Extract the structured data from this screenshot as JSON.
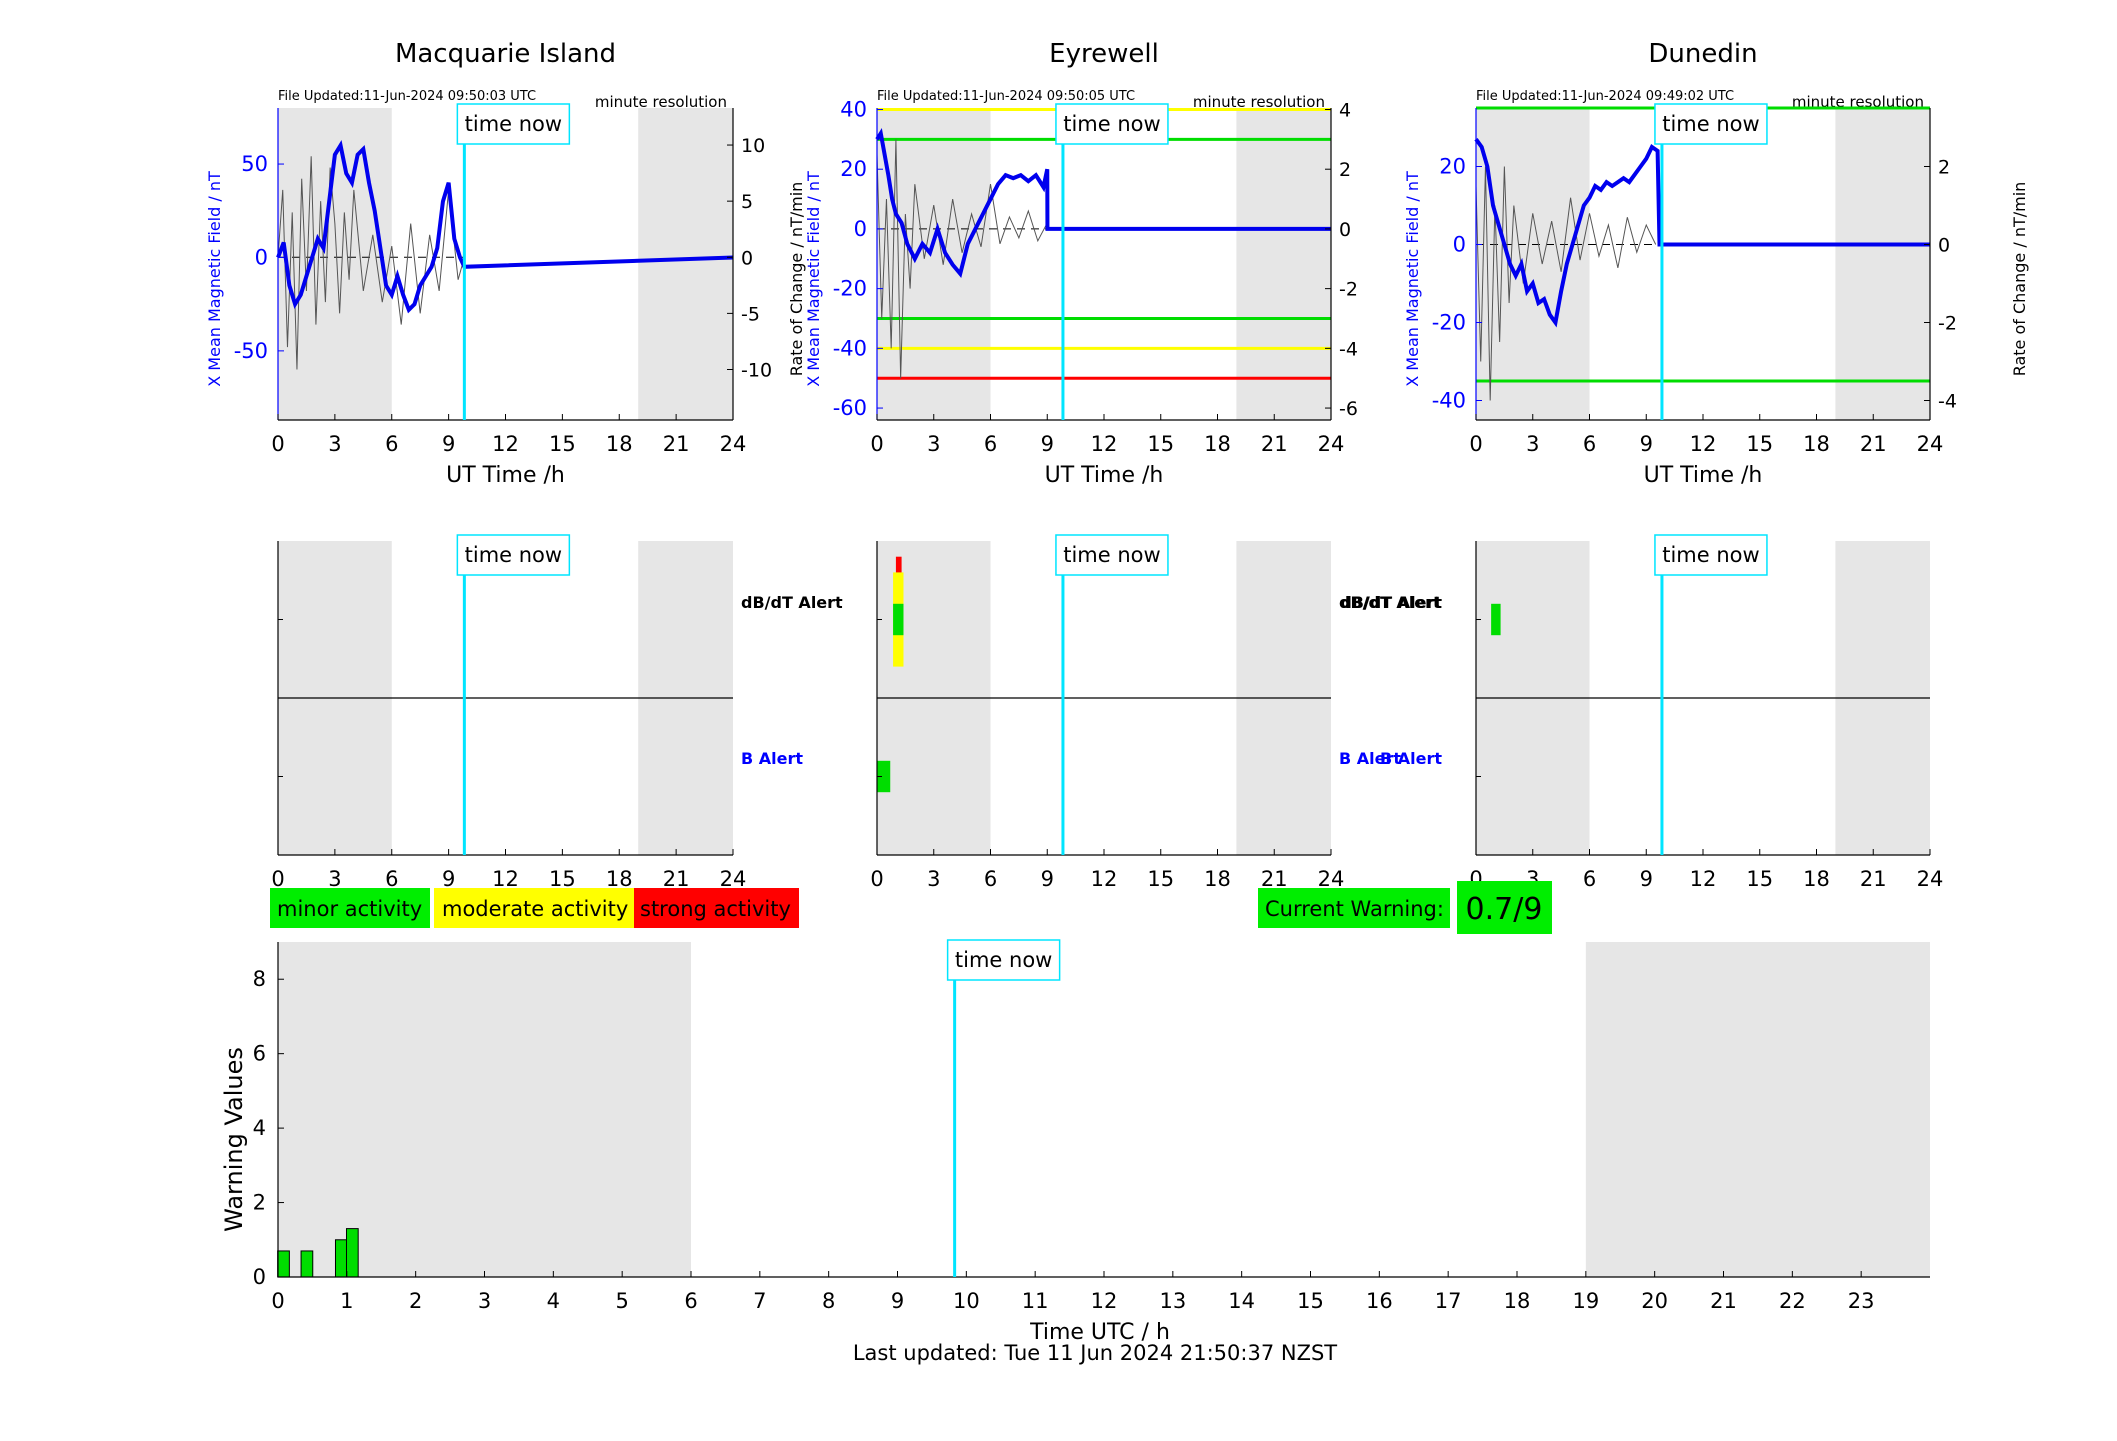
{
  "chart_data": [
    {
      "type": "line",
      "title": "Macquarie Island",
      "file_updated": "File Updated:11-Jun-2024 09:50:03 UTC",
      "resolution": "minute resolution",
      "xlabel": "UT Time /h",
      "ylabel": "X Mean Magnetic Field / nT",
      "ylabel_right": "",
      "xlim": [
        0,
        24
      ],
      "ylim": [
        -87,
        80
      ],
      "ylim_right": [
        -14.5,
        13.3
      ],
      "xticks": [
        0,
        3,
        6,
        9,
        12,
        15,
        18,
        21,
        24
      ],
      "yticks": [
        -50,
        0,
        50
      ],
      "yticks_right": [
        -10,
        -5,
        0,
        5,
        10
      ],
      "night_shading": [
        [
          0,
          6
        ],
        [
          19,
          24
        ]
      ],
      "time_now": 9.83,
      "time_now_label": "time now",
      "thresholds": [],
      "series": [
        {
          "role": "mean field",
          "color": "#0000ee",
          "x": [
            0,
            0.3,
            0.6,
            0.9,
            1.2,
            1.5,
            1.8,
            2.1,
            2.4,
            2.7,
            3.0,
            3.3,
            3.6,
            3.9,
            4.2,
            4.5,
            4.8,
            5.1,
            5.4,
            5.7,
            6.0,
            6.3,
            6.6,
            6.9,
            7.2,
            7.5,
            7.8,
            8.1,
            8.4,
            8.7,
            9.0,
            9.3,
            9.6,
            9.83,
            24
          ],
          "y": [
            0,
            8,
            -15,
            -25,
            -20,
            -10,
            0,
            10,
            5,
            30,
            55,
            60,
            45,
            40,
            55,
            58,
            40,
            25,
            5,
            -15,
            -20,
            -10,
            -20,
            -28,
            -25,
            -15,
            -10,
            -5,
            5,
            30,
            40,
            10,
            0,
            -5,
            0
          ]
        },
        {
          "role": "rate of change",
          "color": "#555555",
          "x": [
            0,
            0.25,
            0.5,
            0.75,
            1.0,
            1.25,
            1.5,
            1.75,
            2.0,
            2.25,
            2.5,
            2.75,
            3.0,
            3.25,
            3.5,
            3.75,
            4.0,
            4.5,
            5.0,
            5.5,
            6.0,
            6.5,
            7.0,
            7.5,
            8.0,
            8.5,
            9.0,
            9.5,
            9.83
          ],
          "y": [
            0,
            6,
            -8,
            4,
            -10,
            7,
            -3,
            9,
            -6,
            5,
            -4,
            8,
            3,
            -5,
            4,
            -2,
            6,
            -3,
            2,
            -4,
            1,
            -6,
            3,
            -5,
            2,
            -3,
            6,
            -2,
            0
          ]
        }
      ]
    },
    {
      "type": "line",
      "title": "Eyrewell",
      "file_updated": "File Updated:11-Jun-2024 09:50:05 UTC",
      "resolution": "minute resolution",
      "xlabel": "UT Time /h",
      "ylabel": "X Mean Magnetic Field / nT",
      "ylabel_right": "Rate of Change / nT/min",
      "xlim": [
        0,
        24
      ],
      "ylim": [
        -64,
        40.5
      ],
      "ylim_right": [
        -6.4,
        4.05
      ],
      "xticks": [
        0,
        3,
        6,
        9,
        12,
        15,
        18,
        21,
        24
      ],
      "yticks": [
        -60,
        -40,
        -20,
        0,
        20,
        40
      ],
      "yticks_right": [
        -6,
        -4,
        -2,
        0,
        2,
        4
      ],
      "night_shading": [
        [
          0,
          6
        ],
        [
          19,
          24
        ]
      ],
      "time_now": 9.83,
      "time_now_label": "time now",
      "thresholds": [
        {
          "y": 40,
          "color": "#ffff00"
        },
        {
          "y": 30,
          "color": "#00dd00"
        },
        {
          "y": -30,
          "color": "#00dd00"
        },
        {
          "y": -40,
          "color": "#ffff00"
        },
        {
          "y": -50,
          "color": "#ff0000"
        }
      ],
      "series": [
        {
          "role": "mean field",
          "color": "#0000ee",
          "x": [
            0,
            0.2,
            0.4,
            0.6,
            0.8,
            1.0,
            1.3,
            1.6,
            2.0,
            2.4,
            2.8,
            3.2,
            3.6,
            4.0,
            4.4,
            4.8,
            5.2,
            5.6,
            6.0,
            6.4,
            6.8,
            7.2,
            7.6,
            8.0,
            8.4,
            8.8,
            9.0,
            9.01,
            9.83,
            24
          ],
          "y": [
            30,
            32,
            25,
            18,
            10,
            5,
            2,
            -5,
            -10,
            -5,
            -8,
            0,
            -8,
            -12,
            -15,
            -5,
            0,
            5,
            10,
            15,
            18,
            17,
            18,
            16,
            18,
            14,
            20,
            0,
            0,
            0
          ]
        },
        {
          "role": "rate of change",
          "color": "#555555",
          "x": [
            0,
            0.25,
            0.5,
            0.75,
            1.0,
            1.25,
            1.5,
            1.75,
            2.0,
            2.5,
            3.0,
            3.5,
            4.0,
            4.5,
            5.0,
            5.5,
            6.0,
            6.5,
            7.0,
            7.5,
            8.0,
            8.5,
            9.0
          ],
          "y": [
            2.5,
            -3,
            1,
            -4,
            3,
            -5,
            0.5,
            -2,
            1.5,
            -1,
            0.8,
            -1.2,
            1,
            -0.8,
            0.5,
            -0.6,
            1.5,
            -0.5,
            0.4,
            -0.3,
            0.6,
            -0.4,
            0.2
          ]
        }
      ]
    },
    {
      "type": "line",
      "title": "Dunedin",
      "file_updated": "File Updated:11-Jun-2024 09:49:02 UTC",
      "resolution": "minute resolution",
      "xlabel": "UT Time /h",
      "ylabel": "X Mean Magnetic Field / nT",
      "ylabel_right": "Rate of Change / nT/min",
      "xlim": [
        0,
        24
      ],
      "ylim": [
        -45,
        35
      ],
      "ylim_right": [
        -4.5,
        3.5
      ],
      "xticks": [
        0,
        3,
        6,
        9,
        12,
        15,
        18,
        21,
        24
      ],
      "yticks": [
        -40,
        -20,
        0,
        20
      ],
      "yticks_right": [
        -4,
        -2,
        0,
        2
      ],
      "night_shading": [
        [
          0,
          6
        ],
        [
          19,
          24
        ]
      ],
      "time_now": 9.83,
      "time_now_label": "time now",
      "thresholds": [
        {
          "y": 35,
          "color": "#00dd00"
        },
        {
          "y": -35,
          "color": "#00dd00"
        }
      ],
      "series": [
        {
          "role": "mean field",
          "color": "#0000ee",
          "x": [
            0,
            0.3,
            0.6,
            0.9,
            1.2,
            1.5,
            1.8,
            2.1,
            2.4,
            2.7,
            3.0,
            3.3,
            3.6,
            3.9,
            4.2,
            4.5,
            4.8,
            5.1,
            5.4,
            5.7,
            6.0,
            6.3,
            6.6,
            6.9,
            7.2,
            7.5,
            7.8,
            8.1,
            8.4,
            8.7,
            9.0,
            9.3,
            9.6,
            9.7,
            9.83,
            24
          ],
          "y": [
            27,
            25,
            20,
            10,
            5,
            0,
            -5,
            -8,
            -5,
            -12,
            -10,
            -15,
            -14,
            -18,
            -20,
            -12,
            -5,
            0,
            5,
            10,
            12,
            15,
            14,
            16,
            15,
            16,
            17,
            16,
            18,
            20,
            22,
            25,
            24,
            0,
            0,
            0
          ]
        },
        {
          "role": "rate of change",
          "color": "#555555",
          "x": [
            0,
            0.25,
            0.5,
            0.75,
            1.0,
            1.25,
            1.5,
            1.75,
            2.0,
            2.5,
            3.0,
            3.5,
            4.0,
            4.5,
            5.0,
            5.5,
            6.0,
            6.5,
            7.0,
            7.5,
            8.0,
            8.5,
            9.0,
            9.5
          ],
          "y": [
            1.5,
            -3,
            2,
            -4,
            1,
            -2.5,
            2,
            -1.5,
            1,
            -1,
            0.8,
            -0.5,
            0.6,
            -0.7,
            1.2,
            -0.4,
            0.8,
            -0.3,
            0.5,
            -0.6,
            0.7,
            -0.2,
            0.5,
            0
          ]
        }
      ]
    },
    {
      "type": "heatmap",
      "station": "Macquarie Island",
      "xlim": [
        0,
        24
      ],
      "xticks": [
        0,
        3,
        6,
        9,
        12,
        15,
        18,
        21,
        24
      ],
      "row_labels": [
        "dB/dT Alert",
        "B Alert"
      ],
      "night_shading": [
        [
          0,
          6
        ],
        [
          19,
          24
        ]
      ],
      "time_now": 9.83,
      "time_now_label": "time now",
      "cells": []
    },
    {
      "type": "heatmap",
      "station": "Eyrewell",
      "xlim": [
        0,
        24
      ],
      "xticks": [
        0,
        3,
        6,
        9,
        12,
        15,
        18,
        21,
        24
      ],
      "row_labels": [
        "dB/dT Alert",
        "B Alert"
      ],
      "night_shading": [
        [
          0,
          6
        ],
        [
          19,
          24
        ]
      ],
      "time_now": 9.83,
      "time_now_label": "time now",
      "cells": [
        {
          "row": "dB/dT Alert",
          "x0": 1.0,
          "x1": 1.3,
          "level": 3,
          "color": "#ff0000",
          "y0": 0.6,
          "y1": 0.9
        },
        {
          "row": "dB/dT Alert",
          "x0": 0.85,
          "x1": 1.4,
          "level": 2,
          "color": "#ffff00",
          "y0": 0.2,
          "y1": 0.8
        },
        {
          "row": "dB/dT Alert",
          "x0": 0.85,
          "x1": 1.4,
          "level": 1,
          "color": "#00dd00",
          "y0": 0.4,
          "y1": 0.6
        },
        {
          "row": "B Alert",
          "x0": 0.0,
          "x1": 0.7,
          "level": 1,
          "color": "#00dd00",
          "y0": 0.4,
          "y1": 0.6
        }
      ]
    },
    {
      "type": "heatmap",
      "station": "Dunedin",
      "xlim": [
        0,
        24
      ],
      "xticks": [
        0,
        3,
        6,
        9,
        12,
        15,
        18,
        21,
        24
      ],
      "row_labels": [
        "dB/dT Alert",
        "B Alert"
      ],
      "night_shading": [
        [
          0,
          6
        ],
        [
          19,
          24
        ]
      ],
      "time_now": 9.83,
      "time_now_label": "time now",
      "cells": [
        {
          "row": "dB/dT Alert",
          "x0": 0.8,
          "x1": 1.3,
          "level": 1,
          "color": "#00dd00",
          "y0": 0.4,
          "y1": 0.6
        }
      ]
    },
    {
      "type": "bar",
      "xlabel": "Time UTC / h",
      "ylabel": "Warning Values",
      "xlim": [
        0,
        24
      ],
      "ylim": [
        0,
        9
      ],
      "xticks": [
        0,
        1,
        2,
        3,
        4,
        5,
        6,
        7,
        8,
        9,
        10,
        11,
        12,
        13,
        14,
        15,
        16,
        17,
        18,
        19,
        20,
        21,
        22,
        23
      ],
      "yticks": [
        0,
        2,
        4,
        6,
        8
      ],
      "night_shading": [
        [
          0,
          6
        ],
        [
          19,
          24
        ]
      ],
      "time_now": 9.83,
      "time_now_label": "time now",
      "bar_width": 0.17,
      "bar_color": "#00dd00",
      "x": [
        0.08,
        0.42,
        0.92,
        1.08
      ],
      "values": [
        0.7,
        0.7,
        1.0,
        1.3
      ]
    }
  ],
  "legend": [
    {
      "label": "minor activity",
      "color": "#00ee00"
    },
    {
      "label": "moderate activity",
      "color": "#ffff00"
    },
    {
      "label": "strong activity",
      "color": "#ff0000"
    }
  ],
  "current_warning": {
    "label": "Current Warning:",
    "value": "0.7/9",
    "color": "#00ee00"
  },
  "footer": {
    "last_updated": "Last updated: Tue 11 Jun 2024 21:50:37 NZST"
  }
}
